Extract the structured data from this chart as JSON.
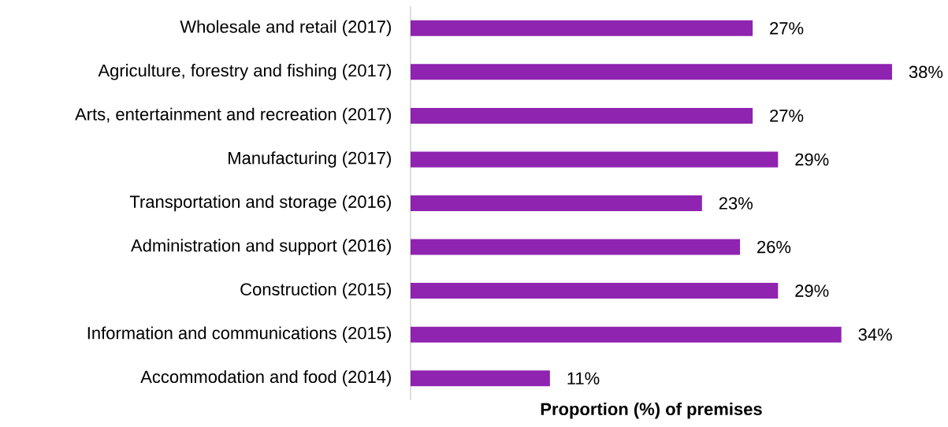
{
  "chart_data": {
    "type": "bar",
    "orientation": "horizontal",
    "categories": [
      "Wholesale and retail (2017)",
      "Agriculture, forestry and fishing (2017)",
      "Arts, entertainment and recreation (2017)",
      "Manufacturing (2017)",
      "Transportation and storage (2016)",
      "Administration and support (2016)",
      "Construction (2015)",
      "Information and communications (2015)",
      "Accommodation and food (2014)"
    ],
    "values": [
      27,
      38,
      27,
      29,
      23,
      26,
      29,
      34,
      11
    ],
    "value_labels": [
      "27%",
      "38%",
      "27%",
      "29%",
      "23%",
      "26%",
      "29%",
      "34%",
      "11%"
    ],
    "color": "#8e24b0",
    "xlabel": "**Proportion (%) of premises**"
  }
}
